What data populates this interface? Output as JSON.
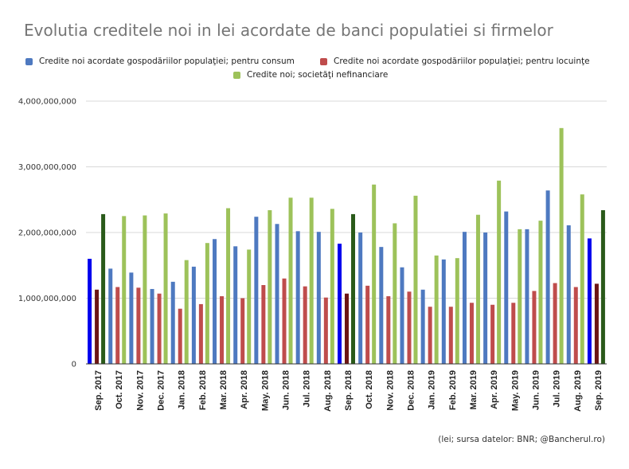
{
  "chart_data": {
    "type": "bar",
    "title": "Evolutia creditele noi in lei acordate de banci populatiei si firmelor",
    "source_note": "(lei; sursa datelor: BNR; @Bancherul.ro)",
    "legend_placement": "top",
    "grid": true,
    "ylim": [
      0,
      4000000000
    ],
    "yticks": [
      "0",
      "1,000,000,000",
      "2,000,000,000",
      "3,000,000,000",
      "4,000,000,000"
    ],
    "categories": [
      "Sep. 2017",
      "Oct. 2017",
      "Nov. 2017",
      "Dec. 2017",
      "Jan. 2018",
      "Feb. 2018",
      "Mar. 2018",
      "Apr. 2018",
      "May. 2018",
      "Jun. 2018",
      "Jul. 2018",
      "Aug. 2018",
      "Sep. 2018",
      "Oct. 2018",
      "Nov. 2018",
      "Dec. 2018",
      "Jan. 2019",
      "Feb. 2019",
      "Mar. 2019",
      "Apr. 2019",
      "May. 2019",
      "Jun. 2019",
      "Jul. 2019",
      "Aug. 2019",
      "Sep. 2019"
    ],
    "highlighted_categories": [
      "Sep. 2017",
      "Sep. 2018",
      "Sep. 2019"
    ],
    "series": [
      {
        "name": "Credite noi acordate gospodăriilor populaţiei; pentru consum",
        "color": "#4e79c0",
        "highlight_color": "#0000ee",
        "values": [
          1600000000,
          1450000000,
          1390000000,
          1140000000,
          1250000000,
          1480000000,
          1900000000,
          1790000000,
          2240000000,
          2130000000,
          2020000000,
          2010000000,
          1830000000,
          2000000000,
          1780000000,
          1470000000,
          1130000000,
          1590000000,
          2010000000,
          2000000000,
          2320000000,
          2050000000,
          2640000000,
          2110000000,
          1910000000
        ]
      },
      {
        "name": "Credite noi acordate gospodăriilor populaţiei; pentru locuinţe",
        "color": "#bf4c4c",
        "highlight_color": "#6b1515",
        "values": [
          1130000000,
          1170000000,
          1160000000,
          1070000000,
          840000000,
          910000000,
          1030000000,
          1000000000,
          1200000000,
          1300000000,
          1180000000,
          1010000000,
          1070000000,
          1190000000,
          1030000000,
          1100000000,
          870000000,
          870000000,
          930000000,
          900000000,
          930000000,
          1110000000,
          1230000000,
          1170000000,
          1220000000
        ]
      },
      {
        "name": "Credite noi; societăţi nefinanciare",
        "color": "#9dc25a",
        "highlight_color": "#2a5a1a",
        "values": [
          2280000000,
          2250000000,
          2260000000,
          2290000000,
          1580000000,
          1840000000,
          2370000000,
          1740000000,
          2340000000,
          2530000000,
          2530000000,
          2360000000,
          2280000000,
          2730000000,
          2140000000,
          2560000000,
          1650000000,
          1610000000,
          2270000000,
          2790000000,
          2050000000,
          2180000000,
          3590000000,
          2580000000,
          2340000000
        ]
      }
    ]
  }
}
